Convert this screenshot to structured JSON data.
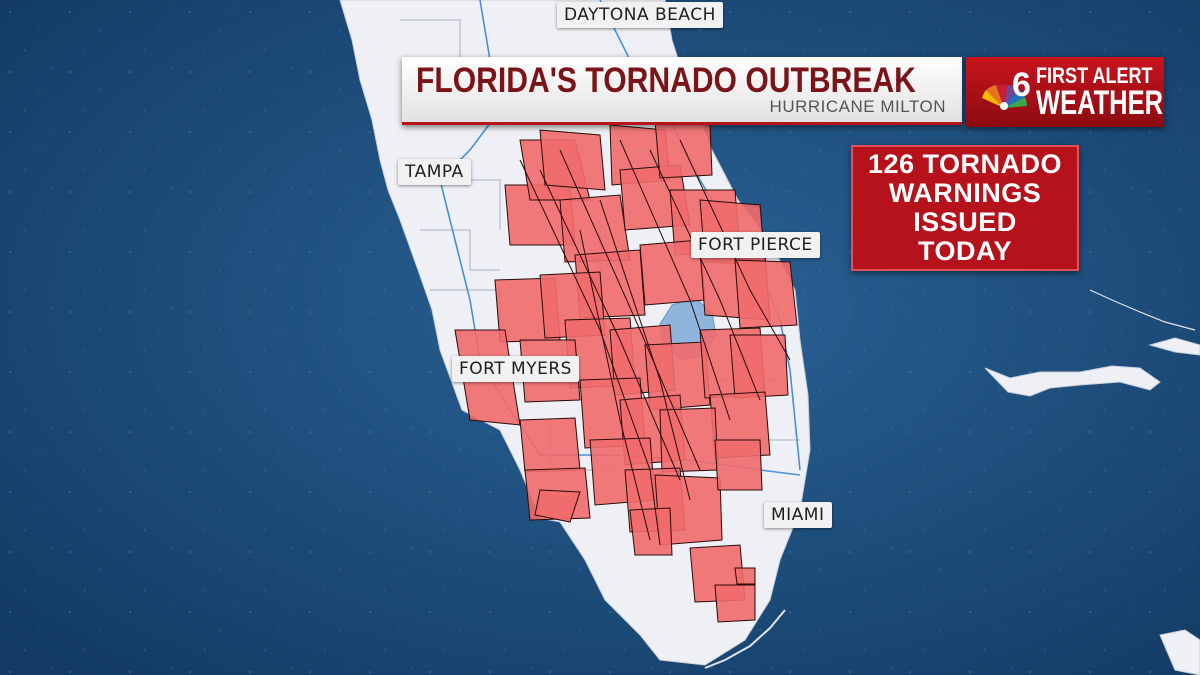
{
  "title": "FLORIDA'S TORNADO OUTBREAK",
  "subtitle": "HURRICANE MILTON",
  "logo": {
    "top": "FIRST ALERT",
    "bottom": "WEATHER",
    "channel": "6",
    "icon": "peacock-icon"
  },
  "warning_box": {
    "lines": [
      "126 TORNADO",
      "WARNINGS",
      "ISSUED",
      "TODAY"
    ]
  },
  "cities": {
    "daytona": "DAYTONA BEACH",
    "tampa": "TAMPA",
    "fort_pierce": "FORT PIERCE",
    "fort_myers": "FORT MYERS",
    "miami": "MIAMI"
  },
  "colors": {
    "ocean": "#1b4a78",
    "land": "#eef0f5",
    "warning_fill": "#f26d6d",
    "warning_outline": "#2a0a0a",
    "brand_red": "#b5121b",
    "title_text": "#7a1419"
  }
}
